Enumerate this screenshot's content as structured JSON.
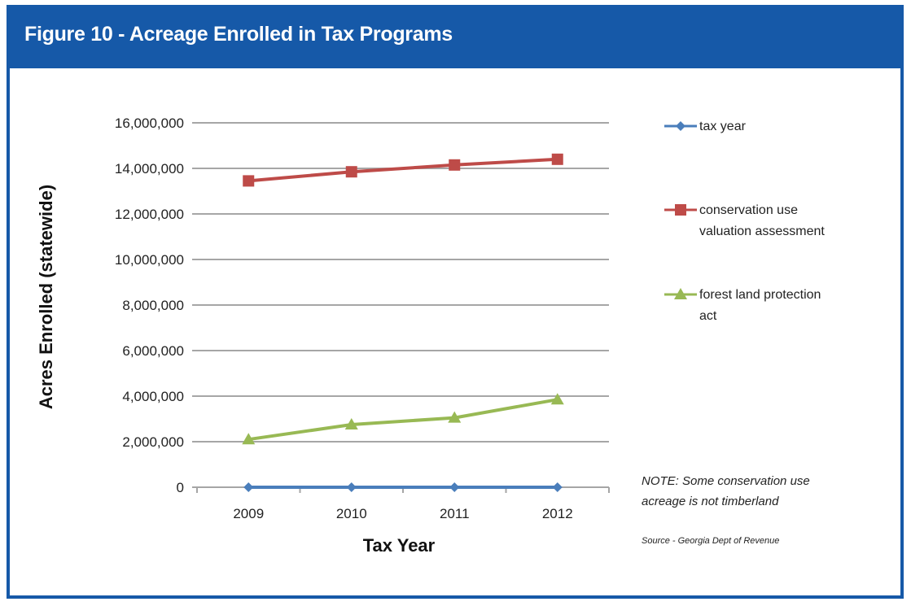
{
  "figure": {
    "title": "Figure 10 - Acreage Enrolled in Tax Programs",
    "note": [
      "NOTE: Some conservation use",
      "acreage is not timberland"
    ],
    "source": "Source - Georgia Dept of Revenue"
  },
  "colors": {
    "frame": "#1659a8",
    "grid": "#a6a6a6"
  },
  "chart_data": {
    "type": "line",
    "title": "",
    "xlabel": "Tax Year",
    "ylabel": "Acres Enrolled (statewide)",
    "ylim": [
      0,
      16000000
    ],
    "ytick_step": 2000000,
    "yticks": [
      "0",
      "2,000,000",
      "4,000,000",
      "6,000,000",
      "8,000,000",
      "10,000,000",
      "12,000,000",
      "14,000,000",
      "16,000,000"
    ],
    "categories": [
      "2009",
      "2010",
      "2011",
      "2012"
    ],
    "grid": true,
    "legend_position": "right",
    "series": [
      {
        "name": "tax year",
        "legend_lines": [
          "tax year"
        ],
        "marker": "diamond",
        "color": "#4a7ebb",
        "values": [
          2009,
          2010,
          2011,
          2012
        ]
      },
      {
        "name": "conservation use valuation assessment",
        "legend_lines": [
          "conservation use",
          "valuation assessment"
        ],
        "marker": "square",
        "color": "#be4b48",
        "values": [
          13450000,
          13850000,
          14150000,
          14400000
        ]
      },
      {
        "name": "forest land protection act",
        "legend_lines": [
          "forest land protection",
          "act"
        ],
        "marker": "triangle",
        "color": "#98b954",
        "values": [
          2100000,
          2750000,
          3050000,
          3850000
        ]
      }
    ]
  }
}
